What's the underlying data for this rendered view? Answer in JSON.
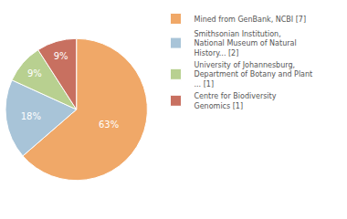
{
  "chart_data": {
    "type": "pie",
    "categories": [
      "Mined from GenBank, NCBI [7]",
      "Smithsonian Institution,\nNational Museum of Natural\nHistory... [2]",
      "University of Johannesburg,\nDepartment of Botany and Plant\n... [1]",
      "Centre for Biodiversity\nGenomics [1]"
    ],
    "values": [
      63,
      18,
      9,
      9
    ],
    "value_labels": [
      "63%",
      "18%",
      "9%",
      "9%"
    ],
    "colors": [
      "#f0a868",
      "#a8c4d8",
      "#b8d090",
      "#c87060"
    ],
    "data_labels": true,
    "legend": "right"
  }
}
